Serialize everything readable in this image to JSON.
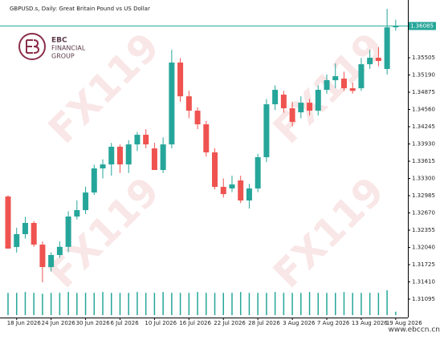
{
  "chart_data": {
    "type": "candlestick",
    "title": "GBPUSD.s, Daily:  Great Britain Pound vs US Dollar",
    "logo": {
      "name": "EBC",
      "line1": "FINANCIAL",
      "line2": "GROUP"
    },
    "watermark": "FX119",
    "website": "www.ebccn.cn",
    "up_color": "#26a69a",
    "down_color": "#ef5350",
    "categories": [
      null,
      "18 Jun 2026",
      null,
      null,
      null,
      "24 Jun 2026",
      null,
      null,
      null,
      "30 Jun 2026",
      null,
      null,
      null,
      "6 Jul 2026",
      null,
      null,
      null,
      "10 Jul 2026",
      null,
      null,
      null,
      "16 Jul 2026",
      null,
      null,
      null,
      "22 Jul 2026",
      null,
      null,
      null,
      "28 Jul 2026",
      null,
      null,
      null,
      "3 Aug 2026",
      null,
      null,
      null,
      "7 Aug 2026",
      null,
      null,
      null,
      "13 Aug 2026",
      null,
      null,
      null,
      "19 Aug 2026"
    ],
    "open": [
      1.3297,
      1.32047,
      1.32282,
      1.32487,
      1.32091,
      1.31681,
      1.31901,
      1.3205,
      1.32604,
      1.32721,
      1.33043,
      1.33483,
      1.33556,
      1.33879,
      1.33556,
      1.33922,
      1.34098,
      1.33849,
      1.33454,
      1.33922,
      1.35417,
      1.34801,
      1.34538,
      1.34289,
      1.33776,
      1.33146,
      1.33117,
      1.33263,
      1.32897,
      1.33117,
      1.33688,
      1.34655,
      1.34831,
      1.34582,
      1.34508,
      1.34684,
      1.34538,
      1.34919,
      1.35095,
      1.35124,
      1.34948,
      1.34948,
      1.35387,
      1.35505,
      1.353,
      1.36061
    ],
    "high": [
      1.3299,
      1.324,
      1.326,
      1.3252,
      1.3215,
      1.3195,
      1.3215,
      1.327,
      1.329,
      1.3315,
      1.3355,
      1.3365,
      1.3395,
      1.3392,
      1.34,
      1.3415,
      1.342,
      1.3395,
      1.3405,
      1.3565,
      1.355,
      1.349,
      1.346,
      1.3435,
      1.3385,
      1.333,
      1.3335,
      1.3335,
      1.332,
      1.3375,
      1.3475,
      1.35,
      1.349,
      1.347,
      1.348,
      1.3475,
      1.35,
      1.352,
      1.354,
      1.3525,
      1.3505,
      1.355,
      1.3565,
      1.357,
      1.364,
      1.362
    ],
    "low": [
      1.32018,
      1.31945,
      1.322,
      1.3205,
      1.31403,
      1.316,
      1.3185,
      1.3195,
      1.3255,
      1.3265,
      1.33,
      1.333,
      1.3335,
      1.334,
      1.334,
      1.338,
      1.3385,
      1.33454,
      1.334,
      1.3385,
      1.347,
      1.344,
      1.342,
      1.337,
      1.331,
      1.3295,
      1.3305,
      1.3285,
      1.3275,
      1.3305,
      1.336,
      1.3455,
      1.345,
      1.3425,
      1.344,
      1.3445,
      1.3445,
      1.3485,
      1.3495,
      1.349,
      1.3485,
      1.349,
      1.353,
      1.3535,
      1.352,
      1.36
    ],
    "close": [
      1.32018,
      1.32282,
      1.32487,
      1.32091,
      1.31681,
      1.31901,
      1.3205,
      1.32604,
      1.32721,
      1.33043,
      1.33483,
      1.33556,
      1.33879,
      1.33556,
      1.33922,
      1.34098,
      1.33922,
      1.33454,
      1.33922,
      1.35417,
      1.34801,
      1.34538,
      1.34289,
      1.33776,
      1.33146,
      1.33014,
      1.3319,
      1.32897,
      1.33117,
      1.33688,
      1.34655,
      1.34919,
      1.34582,
      1.34333,
      1.34684,
      1.34538,
      1.34919,
      1.35095,
      1.35168,
      1.34948,
      1.349,
      1.35387,
      1.35505,
      1.35446,
      1.36061,
      1.36085
    ],
    "volume": [
      26,
      26,
      27,
      26,
      25,
      26,
      26,
      27,
      26,
      26,
      26,
      27,
      26,
      26,
      26,
      27,
      26,
      26,
      27,
      26,
      26,
      26,
      27,
      26,
      26,
      26,
      26,
      27,
      26,
      26,
      26,
      27,
      26,
      26,
      26,
      27,
      26,
      26,
      26,
      27,
      26,
      26,
      26,
      26,
      29,
      4
    ],
    "last_price": 1.36085,
    "ylim": [
      1.30773,
      1.36443
    ],
    "yticks": [
      1.31095,
      {
        "value": 1.3141,
        "label": "1.31410"
      },
      1.31725,
      {
        "value": 1.3204,
        "label": "1.32040"
      },
      1.32355,
      {
        "value": 1.3267,
        "label": "1.32670"
      },
      1.32985,
      {
        "value": 1.333,
        "label": "1.33300"
      },
      1.33615,
      {
        "value": 1.3393,
        "label": "1.33930"
      },
      1.34245,
      {
        "value": 1.3456,
        "label": "1.34560"
      },
      1.34875,
      {
        "value": 1.3519,
        "label": "1.35190"
      },
      1.35505
    ]
  }
}
